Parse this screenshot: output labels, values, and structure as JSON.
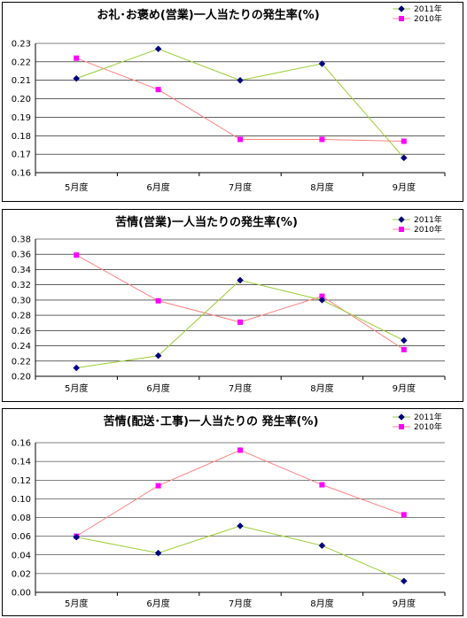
{
  "chart_data": [
    {
      "type": "line",
      "title": "お礼･お褒め(営業)一人当たりの発生率(%)",
      "categories": [
        "5月度",
        "6月度",
        "7月度",
        "8月度",
        "9月度"
      ],
      "series": [
        {
          "name": "2011年",
          "values": [
            0.211,
            0.227,
            0.21,
            0.219,
            0.168
          ],
          "color": "#9ACD32",
          "marker": "diamond",
          "marker_color": "#000080"
        },
        {
          "name": "2010年",
          "values": [
            0.222,
            0.205,
            0.178,
            0.178,
            0.177
          ],
          "color": "#FF8080",
          "marker": "square",
          "marker_color": "#FF00FF"
        }
      ],
      "ylim": [
        0.16,
        0.23
      ],
      "yticks": [
        "0.16",
        "0.17",
        "0.18",
        "0.19",
        "0.20",
        "0.21",
        "0.22",
        "0.23"
      ],
      "grid": true,
      "legend": "top-right"
    },
    {
      "type": "line",
      "title": "苦情(営業)一人当たりの発生率(%)",
      "categories": [
        "5月度",
        "6月度",
        "7月度",
        "8月度",
        "9月度"
      ],
      "series": [
        {
          "name": "2011年",
          "values": [
            0.211,
            0.227,
            0.326,
            0.3,
            0.247
          ],
          "color": "#9ACD32",
          "marker": "diamond",
          "marker_color": "#000080"
        },
        {
          "name": "2010年",
          "values": [
            0.359,
            0.299,
            0.271,
            0.305,
            0.235
          ],
          "color": "#FF8080",
          "marker": "square",
          "marker_color": "#FF00FF"
        }
      ],
      "ylim": [
        0.2,
        0.38
      ],
      "yticks": [
        "0.20",
        "0.22",
        "0.24",
        "0.26",
        "0.28",
        "0.30",
        "0.32",
        "0.34",
        "0.36",
        "0.38"
      ],
      "grid": true,
      "legend": "top-right"
    },
    {
      "type": "line",
      "title": "苦情(配送･工事)一人当たりの 発生率(%)",
      "categories": [
        "5月度",
        "6月度",
        "7月度",
        "8月度",
        "9月度"
      ],
      "series": [
        {
          "name": "2011年",
          "values": [
            0.059,
            0.042,
            0.071,
            0.05,
            0.012
          ],
          "color": "#9ACD32",
          "marker": "diamond",
          "marker_color": "#000080"
        },
        {
          "name": "2010年",
          "values": [
            0.06,
            0.114,
            0.152,
            0.115,
            0.083
          ],
          "color": "#FF8080",
          "marker": "square",
          "marker_color": "#FF00FF"
        }
      ],
      "ylim": [
        0.0,
        0.16
      ],
      "yticks": [
        "0.00",
        "0.02",
        "0.04",
        "0.06",
        "0.08",
        "0.10",
        "0.12",
        "0.14",
        "0.16"
      ],
      "grid": true,
      "legend": "top-right"
    }
  ]
}
